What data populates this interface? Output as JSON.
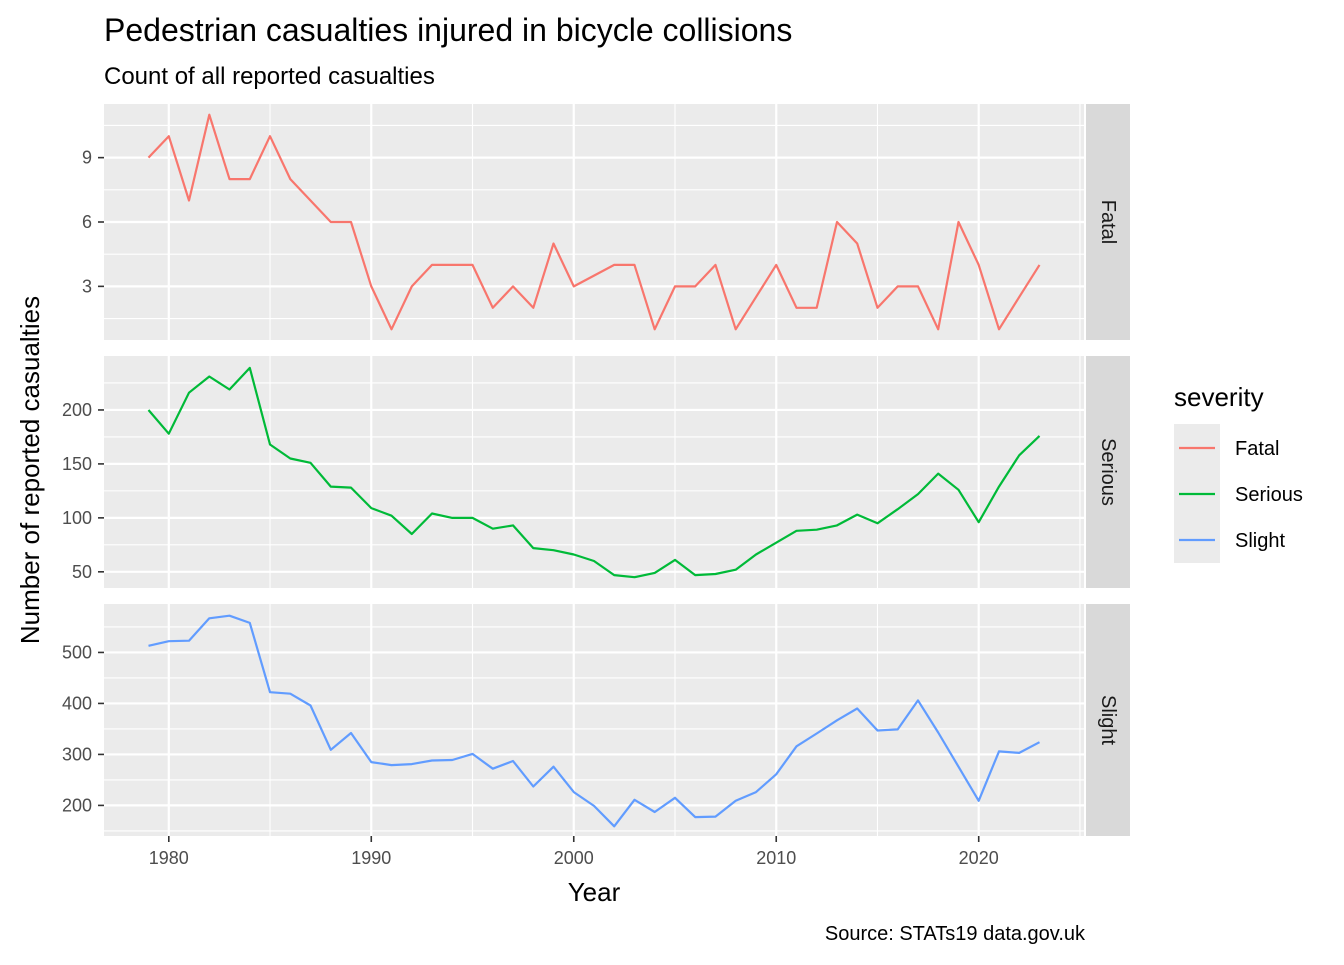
{
  "chart_data": {
    "type": "line",
    "title": "Pedestrian casualties injured in bicycle collisions",
    "subtitle": "Count of all reported casualties",
    "xlabel": "Year",
    "ylabel": "Number of reported casualties",
    "caption": "Source: STATs19 data.gov.uk",
    "legend": {
      "title": "severity",
      "position": "right",
      "entries": [
        "Fatal",
        "Serious",
        "Slight"
      ]
    },
    "grid": true,
    "facets": "rows by severity, shared x axis, free y axis",
    "x": [
      1979,
      1980,
      1981,
      1982,
      1983,
      1984,
      1985,
      1986,
      1987,
      1988,
      1989,
      1990,
      1991,
      1992,
      1993,
      1994,
      1995,
      1996,
      1997,
      1998,
      1999,
      2000,
      2001,
      2002,
      2003,
      2004,
      2005,
      2006,
      2007,
      2008,
      2009,
      2010,
      2011,
      2012,
      2013,
      2014,
      2015,
      2016,
      2017,
      2018,
      2019,
      2020,
      2021,
      2022,
      2023
    ],
    "xlim": [
      1976.8,
      2025.2
    ],
    "xticks": [
      1980,
      1990,
      2000,
      2010,
      2020
    ],
    "xtick_labels": [
      "1980",
      "1990",
      "2000",
      "2010",
      "2020"
    ],
    "series": [
      {
        "name": "Fatal",
        "color": "#f8766d",
        "ylim": [
          0.5,
          11.5
        ],
        "yticks": [
          3,
          6,
          9
        ],
        "ytick_labels": [
          "3",
          "6",
          "9"
        ],
        "values": [
          9,
          10,
          7,
          11,
          8,
          8,
          10,
          8,
          7,
          6,
          6,
          3,
          1,
          3,
          4,
          4,
          4,
          2,
          3,
          2,
          5,
          3,
          3.5,
          4,
          4,
          1,
          3,
          3,
          4,
          1,
          2.5,
          4,
          2,
          2,
          6,
          5,
          2,
          3,
          3,
          1,
          6,
          4,
          1,
          2.5,
          4
        ]
      },
      {
        "name": "Serious",
        "color": "#00ba38",
        "ylim": [
          35,
          250
        ],
        "yticks": [
          50,
          100,
          150,
          200
        ],
        "ytick_labels": [
          "50",
          "100",
          "150",
          "200"
        ],
        "values": [
          200,
          178,
          216,
          231,
          219,
          239,
          168,
          155,
          151,
          129,
          128,
          109,
          102,
          85,
          104,
          100,
          100,
          90,
          93,
          72,
          70,
          66,
          60,
          47,
          45,
          49,
          61,
          47,
          48,
          52,
          66,
          77,
          88,
          89,
          93,
          103,
          95,
          108,
          122,
          141,
          126,
          96,
          129,
          158,
          176
        ]
      },
      {
        "name": "Slight",
        "color": "#619cff",
        "ylim": [
          140,
          595
        ],
        "yticks": [
          200,
          300,
          400,
          500
        ],
        "ytick_labels": [
          "200",
          "300",
          "400",
          "500"
        ],
        "values": [
          513,
          522,
          523,
          567,
          572,
          558,
          422,
          419,
          396,
          309,
          342,
          285,
          279,
          281,
          288,
          289,
          301,
          272,
          287,
          237,
          276,
          226,
          199,
          159,
          211,
          187,
          215,
          177,
          178,
          209,
          226,
          261,
          316,
          341,
          367,
          390,
          347,
          349,
          406,
          343,
          276,
          209,
          306,
          303,
          324
        ]
      }
    ]
  }
}
